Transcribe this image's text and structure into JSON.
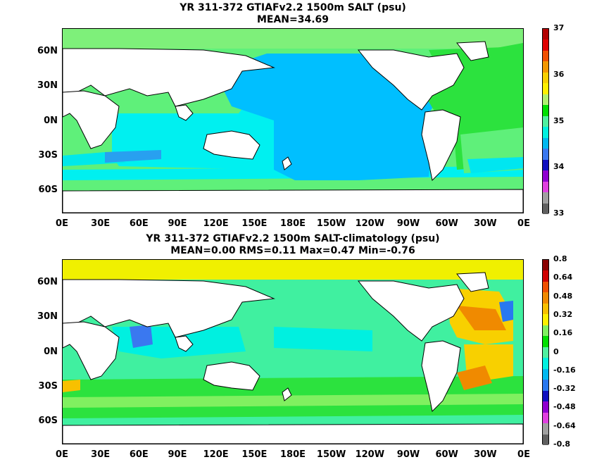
{
  "top": {
    "title_line1": "YR 311-372 GTIAFv2.2 1500m SALT (psu)",
    "title_line2": "MEAN=34.69",
    "lat_labels": [
      "60N",
      "30N",
      "0N",
      "30S",
      "60S"
    ],
    "lon_labels": [
      "0E",
      "30E",
      "60E",
      "90E",
      "120E",
      "150E",
      "180E",
      "150W",
      "120W",
      "90W",
      "60W",
      "30W",
      "0E"
    ],
    "colorbar_labels": [
      "37",
      "36",
      "35",
      "34",
      "33"
    ],
    "colorbar_colors": [
      "#b30000",
      "#e00000",
      "#f05000",
      "#f49800",
      "#f8d000",
      "#fff000",
      "#b0f070",
      "#00e000",
      "#50f0a0",
      "#00f0e0",
      "#00b8f0",
      "#3a78f0",
      "#1010c0",
      "#9000d0",
      "#e040e0",
      "#a0a0a0",
      "#606060"
    ]
  },
  "bottom": {
    "title_line1": "YR 311-372 GTIAFv2.2 1500m SALT-climatology (psu)",
    "title_line2": "MEAN=0.00   RMS=0.11   Max=0.47   Min=-0.76",
    "lat_labels": [
      "60N",
      "30N",
      "0N",
      "30S",
      "60S"
    ],
    "lon_labels": [
      "0E",
      "30E",
      "60E",
      "90E",
      "120E",
      "150E",
      "180E",
      "150W",
      "120W",
      "90W",
      "60W",
      "30W",
      "0E"
    ],
    "colorbar_labels": [
      "0.8",
      "0.64",
      "0.48",
      "0.32",
      "0.16",
      "0",
      "-0.16",
      "-0.32",
      "-0.48",
      "-0.64",
      "-0.8"
    ],
    "colorbar_colors": [
      "#8a0000",
      "#d00000",
      "#f05000",
      "#f08a00",
      "#f8c000",
      "#fff000",
      "#80f060",
      "#00e000",
      "#50f0a0",
      "#00f0e0",
      "#00b8f0",
      "#2878f0",
      "#1010c0",
      "#9000d0",
      "#e040e0",
      "#a0a0a0",
      "#606060"
    ]
  },
  "colors": {
    "pacific": "#00bfff",
    "indian": "#00f0f0",
    "southern": "#5ff07a",
    "atlantic_north": "#2ce23e",
    "arctic": "#7ef07a",
    "land": "#ffffff",
    "anomaly_base": "#40f0a0",
    "anomaly_pos": "#f8d000",
    "anomaly_neg": "#3a78f0"
  },
  "chart_data": [
    {
      "type": "heatmap",
      "title": "YR 311-372 GTIAFv2.2 1500m SALT (psu)",
      "subtitle": "MEAN=34.69",
      "variable": "SALT",
      "units": "psu",
      "mean": 34.69,
      "colorbar_range": [
        33,
        37
      ],
      "colorbar_ticks": [
        33,
        34,
        35,
        36,
        37
      ],
      "lon_range": [
        0,
        360
      ],
      "lat_range": [
        -80,
        80
      ]
    },
    {
      "type": "heatmap",
      "title": "YR 311-372 GTIAFv2.2 1500m SALT-climatology (psu)",
      "subtitle": "MEAN=0.00   RMS=0.11   Max=0.47   Min=-0.76",
      "variable": "SALT-climatology",
      "units": "psu",
      "mean": 0.0,
      "rms": 0.11,
      "max": 0.47,
      "min": -0.76,
      "colorbar_range": [
        -0.8,
        0.8
      ],
      "colorbar_ticks": [
        -0.8,
        -0.64,
        -0.48,
        -0.32,
        -0.16,
        0,
        0.16,
        0.32,
        0.48,
        0.64,
        0.8
      ],
      "lon_range": [
        0,
        360
      ],
      "lat_range": [
        -80,
        80
      ]
    }
  ]
}
